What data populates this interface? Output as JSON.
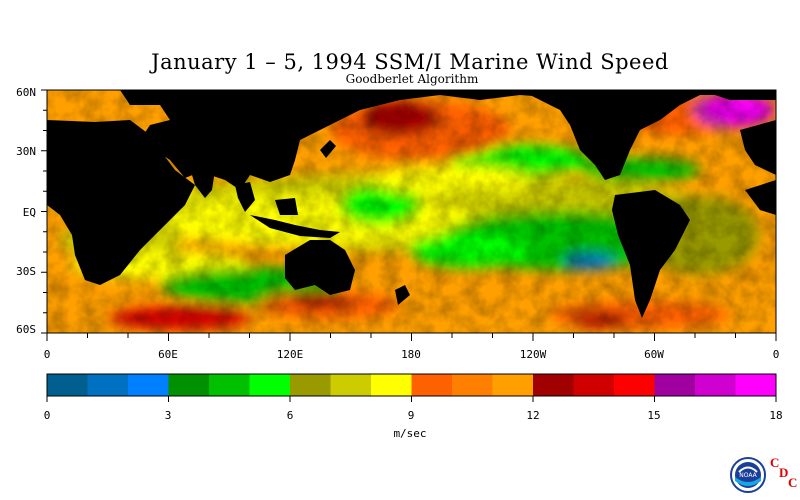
{
  "title": "January 1 – 5, 1994 SSM/I Marine Wind Speed",
  "subtitle": "Goodberlet Algorithm",
  "map": {
    "lat_labels": [
      "60N",
      "30N",
      "EQ",
      "30S",
      "60S"
    ],
    "lon_labels": [
      "0",
      "60E",
      "120E",
      "180",
      "120W",
      "60W",
      "0"
    ]
  },
  "colorbar": {
    "unit_label": "m/sec",
    "tick_labels": [
      "0",
      "3",
      "6",
      "9",
      "12",
      "15",
      "18"
    ],
    "range": [
      0,
      18
    ],
    "colors": [
      "#005f8f",
      "#0070c0",
      "#0080ff",
      "#009000",
      "#00c000",
      "#00ff00",
      "#999900",
      "#cccc00",
      "#ffff00",
      "#ff6000",
      "#ff8000",
      "#ffa000",
      "#a00000",
      "#d00000",
      "#ff0000",
      "#a000a0",
      "#d000d0",
      "#ff00ff"
    ]
  },
  "logos": {
    "noaa": "NOAA",
    "cdc": [
      "C",
      "D",
      "C"
    ]
  }
}
